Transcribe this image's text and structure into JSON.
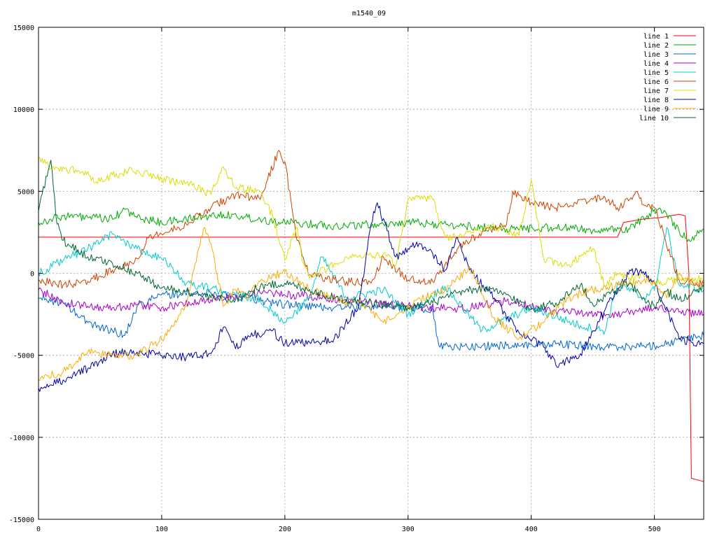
{
  "chart_data": {
    "type": "line",
    "title": "m1540_09",
    "xlabel": "",
    "ylabel": "",
    "xlim": [
      0,
      540
    ],
    "ylim": [
      -15000,
      15000
    ],
    "x_ticks": [
      0,
      100,
      200,
      300,
      400,
      500
    ],
    "y_ticks": [
      -15000,
      -10000,
      -5000,
      0,
      5000,
      10000,
      15000
    ],
    "grid": true,
    "legend_position": "top-right",
    "series": [
      {
        "name": "line 1",
        "color": "#ff0000",
        "x": [
          0,
          60,
          120,
          200,
          300,
          400,
          470,
          475,
          490,
          505,
          520,
          525,
          528,
          530,
          535,
          540
        ],
        "y": [
          2200,
          2200,
          2200,
          2200,
          2200,
          2200,
          2200,
          3100,
          3300,
          3400,
          3600,
          3500,
          0,
          -12500,
          -12600,
          -12700
        ]
      },
      {
        "name": "line 2",
        "color": "#00aa00",
        "x": [
          0,
          10,
          20,
          40,
          60,
          70,
          80,
          100,
          120,
          150,
          180,
          200,
          240,
          280,
          300,
          340,
          380,
          420,
          460,
          480,
          500,
          510,
          520,
          530,
          540
        ],
        "y": [
          3100,
          3300,
          3500,
          3400,
          3300,
          3900,
          3400,
          3100,
          3300,
          3600,
          3300,
          3100,
          2900,
          3000,
          3100,
          2900,
          2700,
          2800,
          2600,
          2700,
          3900,
          3600,
          2600,
          2000,
          2700
        ]
      },
      {
        "name": "line 3",
        "color": "#0066cc",
        "x": [
          0,
          20,
          40,
          60,
          70,
          80,
          100,
          140,
          170,
          200,
          240,
          280,
          320,
          325,
          340,
          380,
          420,
          460,
          500,
          540
        ],
        "y": [
          -1500,
          -1800,
          -3000,
          -3500,
          -3800,
          -2000,
          -1300,
          -1200,
          -1500,
          -1900,
          -2100,
          -2000,
          -2200,
          -4400,
          -4500,
          -4400,
          -4300,
          -4500,
          -4400,
          -3800
        ]
      },
      {
        "name": "line 4",
        "color": "#aa00cc",
        "x": [
          0,
          20,
          40,
          60,
          80,
          100,
          140,
          180,
          220,
          260,
          300,
          340,
          380,
          420,
          460,
          500,
          540
        ],
        "y": [
          -1000,
          -1800,
          -2000,
          -2100,
          -1900,
          -2100,
          -1600,
          -1200,
          -1400,
          -1700,
          -2000,
          -2200,
          -1700,
          -2300,
          -2600,
          -2100,
          -2500
        ]
      },
      {
        "name": "line 5",
        "color": "#00cccc",
        "x": [
          0,
          20,
          40,
          60,
          80,
          100,
          120,
          150,
          180,
          200,
          220,
          230,
          250,
          280,
          300,
          330,
          360,
          400,
          440,
          460,
          470,
          490,
          500,
          510,
          520,
          540
        ],
        "y": [
          0,
          800,
          1500,
          2400,
          1500,
          900,
          -600,
          -1100,
          -1600,
          -3000,
          -1500,
          1000,
          -1500,
          -1000,
          -2500,
          -800,
          -3500,
          -2100,
          -3200,
          -3500,
          -600,
          -1500,
          -1000,
          2800,
          -700,
          -1000
        ]
      },
      {
        "name": "line 6",
        "color": "#cc4400",
        "x": [
          0,
          20,
          40,
          60,
          80,
          90,
          100,
          120,
          140,
          160,
          180,
          195,
          200,
          210,
          220,
          250,
          270,
          280,
          300,
          320,
          340,
          360,
          380,
          385,
          400,
          420,
          450,
          460,
          470,
          480,
          485,
          490,
          500,
          520,
          540
        ],
        "y": [
          -400,
          -700,
          -500,
          200,
          900,
          2300,
          2400,
          3000,
          4000,
          4800,
          4500,
          7500,
          6800,
          2000,
          -100,
          -500,
          -600,
          1000,
          -400,
          -500,
          1500,
          2500,
          3000,
          5000,
          4300,
          4000,
          4500,
          4600,
          4000,
          4500,
          5000,
          4200,
          4000,
          -400,
          -600
        ]
      },
      {
        "name": "line 7",
        "color": "#dddd00",
        "x": [
          0,
          10,
          30,
          50,
          60,
          80,
          100,
          120,
          140,
          150,
          160,
          180,
          190,
          200,
          210,
          215,
          220,
          250,
          280,
          290,
          300,
          320,
          330,
          340,
          350,
          370,
          390,
          400,
          410,
          430,
          450,
          460,
          470,
          480,
          490,
          500,
          510,
          520,
          540
        ],
        "y": [
          7000,
          6400,
          6300,
          5600,
          6000,
          6300,
          5700,
          5500,
          4800,
          6500,
          5200,
          5000,
          3500,
          800,
          2800,
          600,
          -300,
          1000,
          1200,
          500,
          4500,
          4500,
          2200,
          2200,
          2600,
          2800,
          2300,
          5700,
          900,
          500,
          1500,
          -800,
          0,
          -300,
          0,
          -600,
          -500,
          -300,
          -400
        ]
      },
      {
        "name": "line 8",
        "color": "#0000aa",
        "x": [
          0,
          10,
          20,
          40,
          60,
          80,
          100,
          120,
          140,
          150,
          160,
          170,
          190,
          200,
          220,
          240,
          260,
          270,
          275,
          290,
          300,
          310,
          320,
          330,
          340,
          350,
          370,
          390,
          410,
          420,
          440,
          460,
          480,
          490,
          500,
          520,
          540
        ],
        "y": [
          -7000,
          -6800,
          -6500,
          -5800,
          -4900,
          -4800,
          -5000,
          -5100,
          -4900,
          -3300,
          -4600,
          -3800,
          -3500,
          -4300,
          -4200,
          -4000,
          -2000,
          3000,
          4300,
          1000,
          1500,
          1800,
          1200,
          200,
          2200,
          200,
          -1500,
          -3600,
          -4500,
          -5600,
          -4900,
          -2200,
          200,
          0,
          -500,
          -4000,
          -4300
        ]
      },
      {
        "name": "line 9",
        "color": "#ffaa00",
        "x": [
          0,
          20,
          40,
          60,
          80,
          100,
          120,
          130,
          135,
          140,
          150,
          160,
          170,
          180,
          200,
          220,
          250,
          260,
          280,
          290,
          310,
          330,
          350,
          370,
          390,
          410,
          430,
          450,
          470,
          490,
          500,
          510,
          520,
          530,
          540
        ],
        "y": [
          -6500,
          -6000,
          -4800,
          -5000,
          -5000,
          -4000,
          -2000,
          1500,
          2800,
          1800,
          -2000,
          -1000,
          -1500,
          -500,
          100,
          -1000,
          -1800,
          -1600,
          -3000,
          -2600,
          -1600,
          -1000,
          400,
          -2700,
          -4000,
          -3000,
          -1500,
          -1000,
          -700,
          -500,
          -500,
          -1500,
          0,
          -700,
          -800
        ]
      },
      {
        "name": "line 10",
        "color": "#006633",
        "x": [
          0,
          10,
          15,
          20,
          40,
          60,
          80,
          100,
          120,
          140,
          160,
          180,
          200,
          220,
          240,
          260,
          280,
          300,
          320,
          340,
          360,
          380,
          400,
          420,
          440,
          450,
          470,
          480,
          490,
          500,
          510,
          520,
          530,
          540
        ],
        "y": [
          3800,
          6900,
          3000,
          2000,
          1000,
          600,
          0,
          -900,
          -1100,
          -1500,
          -1600,
          -800,
          -600,
          -1000,
          -1500,
          -1700,
          -1900,
          -2100,
          -1800,
          -1200,
          -900,
          -1300,
          -2200,
          -1800,
          -700,
          -1900,
          -900,
          -600,
          -1600,
          -2000,
          -1100,
          -1600,
          -1300,
          -800
        ]
      }
    ]
  }
}
